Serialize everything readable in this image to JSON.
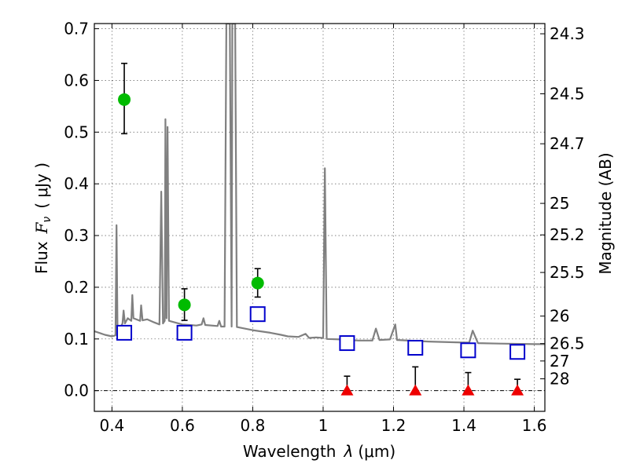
{
  "chart_data": {
    "type": "line",
    "xlabel_prefix": "Wavelength",
    "xlabel_symbol": "λ",
    "xlabel_unit": "(μm)",
    "ylabel": "Flux",
    "ylabel_symbol": "F",
    "ylabel_subscript": "ν",
    "ylabel_unit": "( μJy )",
    "ylabel_right": "Magnitude (AB)",
    "xlim": [
      0.35,
      1.63
    ],
    "ylim": [
      -0.04,
      0.71
    ],
    "x_ticks": [
      0.4,
      0.6,
      0.8,
      1.0,
      1.2,
      1.4,
      1.6
    ],
    "x_tick_labels": [
      "0.4",
      "0.6",
      "0.8",
      "1",
      "1.2",
      "1.4",
      "1.6"
    ],
    "y_ticks": [
      0.0,
      0.1,
      0.2,
      0.3,
      0.4,
      0.5,
      0.6,
      0.7
    ],
    "y_tick_labels": [
      "0.0",
      "0.1",
      "0.2",
      "0.3",
      "0.4",
      "0.5",
      "0.6",
      "0.7"
    ],
    "right_ticks": [
      {
        "label": "24.3",
        "flux": 0.6902
      },
      {
        "label": "24.5",
        "flux": 0.5741
      },
      {
        "label": "24.7",
        "flux": 0.4775
      },
      {
        "label": "25",
        "flux": 0.3622
      },
      {
        "label": "25.2",
        "flux": 0.3013
      },
      {
        "label": "25.5",
        "flux": 0.2286
      },
      {
        "label": "26",
        "flux": 0.1442
      },
      {
        "label": "26.5",
        "flux": 0.091
      },
      {
        "label": "27",
        "flux": 0.0574
      },
      {
        "label": "28",
        "flux": 0.0229
      }
    ],
    "grid": true,
    "colors": {
      "model": "#808080",
      "detection": "#00bb00",
      "model_band": "#0000cc",
      "upper_limit": "#ee0000",
      "errorbar": "#000000"
    },
    "model_spectrum": [
      [
        0.35,
        0.115
      ],
      [
        0.38,
        0.108
      ],
      [
        0.4,
        0.105
      ],
      [
        0.41,
        0.107
      ],
      [
        0.413,
        0.32
      ],
      [
        0.416,
        0.11
      ],
      [
        0.43,
        0.13
      ],
      [
        0.433,
        0.155
      ],
      [
        0.437,
        0.13
      ],
      [
        0.445,
        0.14
      ],
      [
        0.455,
        0.135
      ],
      [
        0.458,
        0.185
      ],
      [
        0.461,
        0.14
      ],
      [
        0.48,
        0.135
      ],
      [
        0.483,
        0.165
      ],
      [
        0.487,
        0.136
      ],
      [
        0.5,
        0.138
      ],
      [
        0.52,
        0.132
      ],
      [
        0.535,
        0.128
      ],
      [
        0.54,
        0.385
      ],
      [
        0.545,
        0.13
      ],
      [
        0.55,
        0.135
      ],
      [
        0.552,
        0.525
      ],
      [
        0.555,
        0.14
      ],
      [
        0.558,
        0.51
      ],
      [
        0.562,
        0.135
      ],
      [
        0.6,
        0.128
      ],
      [
        0.62,
        0.127
      ],
      [
        0.64,
        0.126
      ],
      [
        0.655,
        0.128
      ],
      [
        0.66,
        0.14
      ],
      [
        0.665,
        0.127
      ],
      [
        0.7,
        0.125
      ],
      [
        0.705,
        0.135
      ],
      [
        0.71,
        0.124
      ],
      [
        0.72,
        0.124
      ],
      [
        0.725,
        0.71
      ],
      [
        0.735,
        0.71
      ],
      [
        0.74,
        0.124
      ],
      [
        0.742,
        0.71
      ],
      [
        0.75,
        0.71
      ],
      [
        0.755,
        0.123
      ],
      [
        0.8,
        0.117
      ],
      [
        0.85,
        0.112
      ],
      [
        0.88,
        0.108
      ],
      [
        0.9,
        0.105
      ],
      [
        0.93,
        0.104
      ],
      [
        0.95,
        0.11
      ],
      [
        0.96,
        0.102
      ],
      [
        0.98,
        0.103
      ],
      [
        1.0,
        0.102
      ],
      [
        1.005,
        0.43
      ],
      [
        1.01,
        0.1
      ],
      [
        1.05,
        0.099
      ],
      [
        1.1,
        0.097
      ],
      [
        1.14,
        0.097
      ],
      [
        1.15,
        0.12
      ],
      [
        1.16,
        0.098
      ],
      [
        1.19,
        0.099
      ],
      [
        1.205,
        0.128
      ],
      [
        1.21,
        0.098
      ],
      [
        1.3,
        0.095
      ],
      [
        1.4,
        0.093
      ],
      [
        1.415,
        0.093
      ],
      [
        1.425,
        0.116
      ],
      [
        1.44,
        0.092
      ],
      [
        1.5,
        0.091
      ],
      [
        1.6,
        0.09
      ],
      [
        1.63,
        0.09
      ]
    ],
    "detections": [
      {
        "x": 0.435,
        "y": 0.563,
        "err_lo": 0.066,
        "err_hi": 0.07
      },
      {
        "x": 0.606,
        "y": 0.166,
        "err_lo": 0.03,
        "err_hi": 0.031
      },
      {
        "x": 0.814,
        "y": 0.208,
        "err_lo": 0.027,
        "err_hi": 0.028
      }
    ],
    "model_bands": [
      {
        "x": 0.435,
        "y": 0.112
      },
      {
        "x": 0.606,
        "y": 0.112
      },
      {
        "x": 0.814,
        "y": 0.148
      },
      {
        "x": 1.068,
        "y": 0.092
      },
      {
        "x": 1.262,
        "y": 0.083
      },
      {
        "x": 1.412,
        "y": 0.078
      },
      {
        "x": 1.552,
        "y": 0.075
      }
    ],
    "upper_limits": [
      {
        "x": 1.068,
        "y": 0.0,
        "err_hi": 0.028
      },
      {
        "x": 1.262,
        "y": 0.0,
        "err_hi": 0.046
      },
      {
        "x": 1.412,
        "y": 0.0,
        "err_hi": 0.035
      },
      {
        "x": 1.552,
        "y": 0.0,
        "err_hi": 0.022
      }
    ]
  }
}
